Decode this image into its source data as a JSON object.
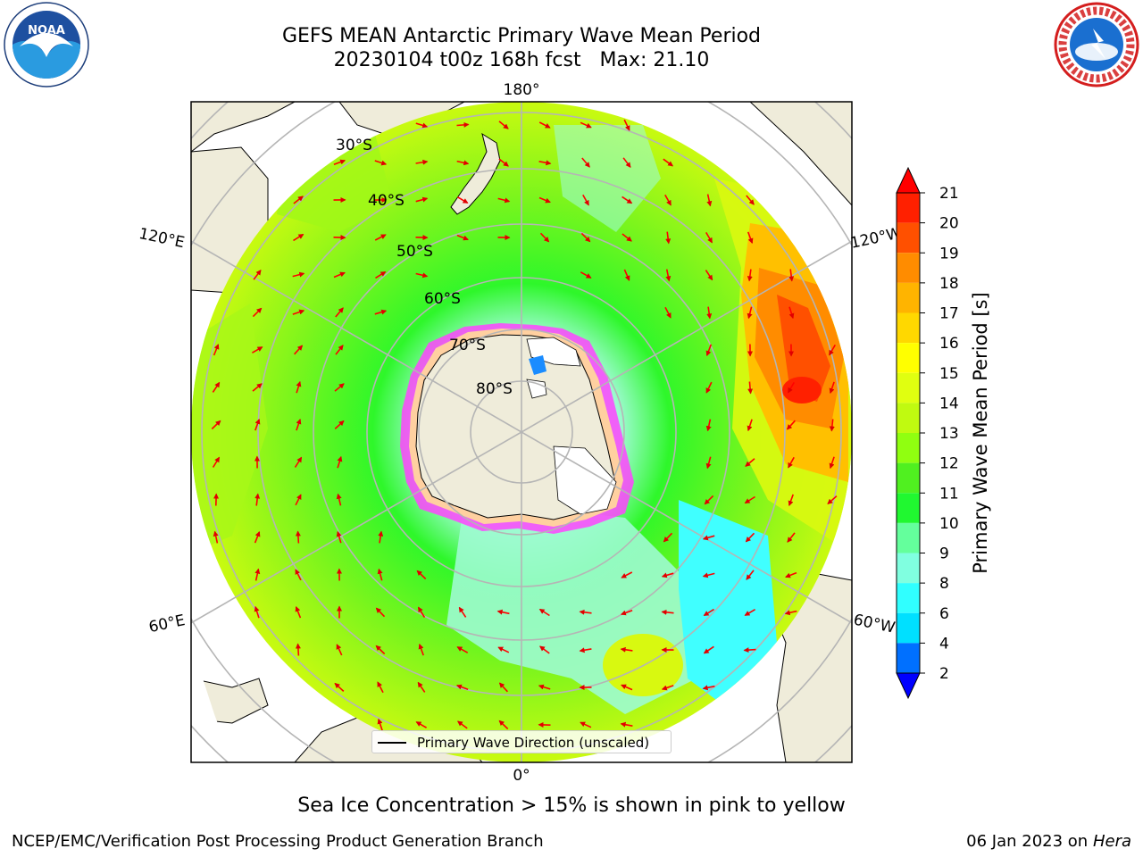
{
  "title": {
    "line1": "GEFS MEAN Antarctic Primary Wave Mean Period",
    "line2": "20230104 t00z 168h fcst   Max: 21.10"
  },
  "logos": {
    "left": "noaa-logo",
    "right": "national-weather-service-logo"
  },
  "map": {
    "projection": "south-polar-stereographic",
    "longitude_labels": [
      "180°",
      "120°E",
      "120°W",
      "60°E",
      "60°W",
      "0°"
    ],
    "latitude_labels": [
      "30°S",
      "40°S",
      "50°S",
      "60°S",
      "70°S",
      "80°S"
    ],
    "legend": "Primary Wave Direction (unscaled)",
    "field_colors": {
      "ocean_low": "#9dfbd0",
      "ocean_mid": "#2ef72a",
      "ocean_high": "#c9fa10",
      "ocean_peak": "#ff8c00",
      "land": "#efecda",
      "ice_edge": "#ff00ff",
      "arrow": "#ff0000"
    }
  },
  "colorbar": {
    "label": "Primary Wave Mean Period [s]",
    "ticks": [
      "21",
      "20",
      "19",
      "18",
      "17",
      "16",
      "15",
      "14",
      "13",
      "12",
      "11",
      "10",
      "9",
      "8",
      "6",
      "4",
      "2"
    ],
    "levels": [
      {
        "lo": 20,
        "hi": 21,
        "color": "#ff2000"
      },
      {
        "lo": 19,
        "hi": 20,
        "color": "#ff5000"
      },
      {
        "lo": 18,
        "hi": 19,
        "color": "#ff8c00"
      },
      {
        "lo": 17,
        "hi": 18,
        "color": "#ffb400"
      },
      {
        "lo": 16,
        "hi": 17,
        "color": "#ffd800"
      },
      {
        "lo": 15,
        "hi": 16,
        "color": "#ffff00"
      },
      {
        "lo": 14,
        "hi": 15,
        "color": "#e0ff10"
      },
      {
        "lo": 13,
        "hi": 14,
        "color": "#c0fa10"
      },
      {
        "lo": 12,
        "hi": 13,
        "color": "#90ff10"
      },
      {
        "lo": 11,
        "hi": 12,
        "color": "#50f020"
      },
      {
        "lo": 10,
        "hi": 11,
        "color": "#20f830"
      },
      {
        "lo": 9,
        "hi": 10,
        "color": "#64ff9c"
      },
      {
        "lo": 8,
        "hi": 9,
        "color": "#80ffe0"
      },
      {
        "lo": 6,
        "hi": 8,
        "color": "#30ffff"
      },
      {
        "lo": 4,
        "hi": 6,
        "color": "#00e0ff"
      },
      {
        "lo": 2,
        "hi": 4,
        "color": "#0070ff"
      }
    ],
    "extend_max_color": "#ff0000",
    "extend_min_color": "#0000ff"
  },
  "notes": {
    "sea_ice": "Sea Ice Concentration > 15% is shown in pink to yellow",
    "producer": "NCEP/EMC/Verification Post Processing Product Generation Branch",
    "date": "06 Jan 2023 on ",
    "machine": "Hera"
  }
}
